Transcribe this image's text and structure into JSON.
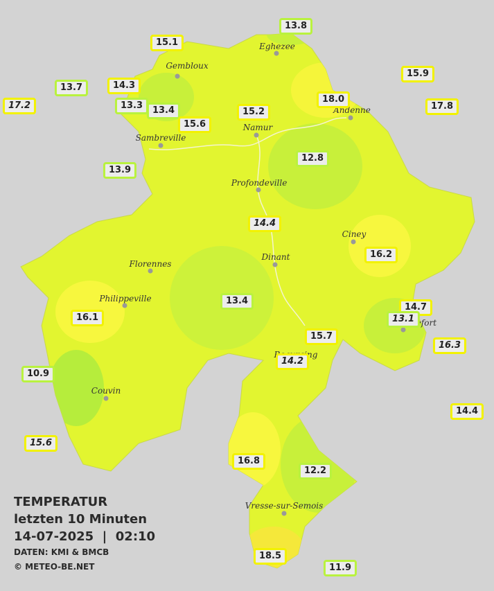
{
  "title": {
    "heading": "TEMPERATUR",
    "subheading": "letzten 10 Minuten",
    "datetime": "14-07-2025  |  02:10",
    "source": "DATEN: KMI & BMCB",
    "copyright": "© METEO-BE.NET"
  },
  "cities": [
    "Eghezee",
    "Gembloux",
    "Andenne",
    "Namur",
    "Sambreville",
    "Profondeville",
    "Ciney",
    "Dinant",
    "Florennes",
    "Philippeville",
    "Rochefort",
    "Beauraing",
    "Couvin",
    "Vresse-sur-Semois"
  ],
  "stations": [
    {
      "label": "13.8"
    },
    {
      "label": "15.1"
    },
    {
      "label": "15.9"
    },
    {
      "label": "13.7"
    },
    {
      "label": "14.3"
    },
    {
      "label": "17.2",
      "italic": true
    },
    {
      "label": "13.3"
    },
    {
      "label": "13.4"
    },
    {
      "label": "15.2"
    },
    {
      "label": "18.0"
    },
    {
      "label": "17.8"
    },
    {
      "label": "15.6"
    },
    {
      "label": "13.9"
    },
    {
      "label": "12.8"
    },
    {
      "label": "14.4",
      "italic": true
    },
    {
      "label": "16.2"
    },
    {
      "label": "14.7"
    },
    {
      "label": "13.1",
      "italic": true
    },
    {
      "label": "13.4"
    },
    {
      "label": "16.1"
    },
    {
      "label": "15.7"
    },
    {
      "label": "16.3",
      "italic": true
    },
    {
      "label": "14.2",
      "italic": true
    },
    {
      "label": "10.9"
    },
    {
      "label": "14.4"
    },
    {
      "label": "15.6",
      "italic": true
    },
    {
      "label": "16.8"
    },
    {
      "label": "12.2"
    },
    {
      "label": "18.5"
    },
    {
      "label": "11.9"
    }
  ]
}
